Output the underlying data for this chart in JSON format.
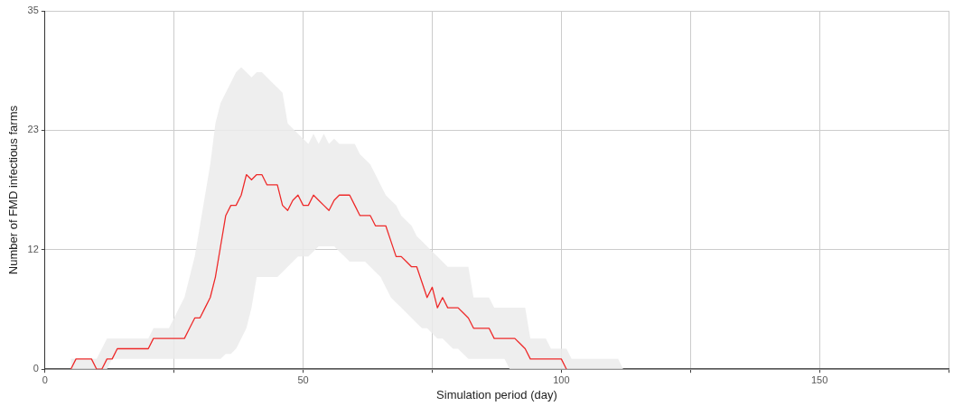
{
  "chart_data": {
    "type": "line",
    "xlabel": "Simulation period (day)",
    "ylabel": "Number of FMD infectious farms",
    "x": [
      5,
      6,
      7,
      8,
      9,
      10,
      11,
      12,
      13,
      14,
      15,
      16,
      17,
      18,
      19,
      20,
      21,
      22,
      23,
      24,
      25,
      26,
      27,
      28,
      29,
      30,
      31,
      32,
      33,
      34,
      35,
      36,
      37,
      38,
      39,
      40,
      41,
      42,
      43,
      44,
      45,
      46,
      47,
      48,
      49,
      50,
      51,
      52,
      53,
      54,
      55,
      56,
      57,
      58,
      59,
      60,
      61,
      62,
      63,
      64,
      65,
      66,
      67,
      68,
      69,
      70,
      71,
      72,
      73,
      74,
      75,
      76,
      77,
      78,
      79,
      80,
      81,
      82,
      83,
      84,
      85,
      86,
      87,
      88,
      89,
      90,
      91,
      92,
      93,
      94,
      95,
      96,
      97,
      98,
      99,
      100,
      101,
      102,
      103,
      104,
      105,
      106,
      107,
      108,
      109,
      110,
      111,
      112
    ],
    "series": [
      {
        "color": "#ee2a2a",
        "values": [
          0,
          1,
          1,
          1,
          1,
          0,
          0,
          1,
          1,
          2,
          2,
          2,
          2,
          2,
          2,
          2,
          3,
          3,
          3,
          3,
          3,
          3,
          3,
          4,
          5,
          5,
          6,
          7,
          9,
          12,
          15,
          16,
          16,
          17,
          19,
          18.5,
          19,
          19,
          18,
          18,
          18,
          16,
          15.5,
          16.5,
          17,
          16,
          16,
          17,
          16.5,
          16,
          15.5,
          16.5,
          17,
          17,
          17,
          16,
          15,
          15,
          15,
          14,
          14,
          14,
          12.5,
          11,
          11,
          10.5,
          10,
          10,
          8.5,
          7,
          8,
          6,
          7,
          6,
          6,
          6,
          5.5,
          5,
          4,
          4,
          4,
          4,
          3,
          3,
          3,
          3,
          3,
          2.5,
          2,
          1,
          1,
          1,
          1,
          1,
          1,
          1,
          0,
          null,
          null,
          null,
          null,
          null,
          null,
          null,
          null,
          null,
          null,
          null
        ],
        "lower": [
          0,
          0,
          0,
          0,
          0,
          0,
          0,
          0,
          1,
          1,
          1,
          1,
          1,
          1,
          1,
          1,
          1,
          1,
          1,
          1,
          1,
          1,
          1,
          1,
          1,
          1,
          1,
          1,
          1,
          1,
          1.5,
          1.5,
          2,
          3,
          4,
          6,
          9,
          9,
          9,
          9,
          9,
          9.5,
          10,
          10.5,
          11,
          11,
          11,
          11.5,
          12,
          12,
          12,
          12,
          11.5,
          11,
          10.5,
          10.5,
          10.5,
          10.5,
          10,
          9.5,
          9,
          8,
          7,
          6.5,
          6,
          5.5,
          5,
          4.5,
          4,
          4,
          3.5,
          3,
          3,
          2.5,
          2,
          2,
          1.5,
          1,
          1,
          1,
          1,
          1,
          1,
          1,
          1,
          0,
          0,
          0,
          0,
          0,
          0,
          0,
          0,
          0,
          0,
          0,
          0,
          0,
          0,
          0,
          0,
          0,
          0,
          0,
          0,
          0,
          0,
          0
        ],
        "upper": [
          1,
          1,
          1,
          1,
          1,
          1,
          2,
          3,
          3,
          3,
          3,
          3,
          3,
          3,
          3,
          3,
          4,
          4,
          4,
          4,
          5,
          6,
          7,
          9,
          11,
          14,
          17,
          20,
          24,
          26,
          27,
          28,
          29,
          29.5,
          29,
          28.5,
          29,
          29,
          28.5,
          28,
          27.5,
          27,
          24,
          23.5,
          23,
          22.5,
          22,
          23,
          22,
          23,
          22,
          22.5,
          22,
          22,
          22,
          22,
          21,
          20.5,
          20,
          19,
          18,
          17,
          16.5,
          16,
          15,
          14.5,
          14,
          13,
          12.5,
          12,
          11.5,
          11,
          10.5,
          10,
          10,
          10,
          10,
          10,
          7,
          7,
          7,
          7,
          6,
          6,
          6,
          6,
          6,
          6,
          6,
          3,
          3,
          3,
          3,
          2,
          2,
          2,
          2,
          1,
          1,
          1,
          1,
          1,
          1,
          1,
          1,
          1,
          1,
          0
        ]
      }
    ],
    "xlim": [
      0,
      175
    ],
    "xticks": [
      0,
      {
        "value": 25,
        "label": null
      },
      50,
      {
        "value": 75,
        "label": null
      },
      100,
      {
        "value": 125,
        "label": null
      },
      150,
      {
        "value": 175,
        "label": null
      }
    ],
    "ylim": [
      0,
      35
    ],
    "yticks": [
      0,
      {
        "value": 11.67,
        "label": "12"
      },
      {
        "value": 23.33,
        "label": "23"
      },
      35
    ],
    "grid": true
  }
}
